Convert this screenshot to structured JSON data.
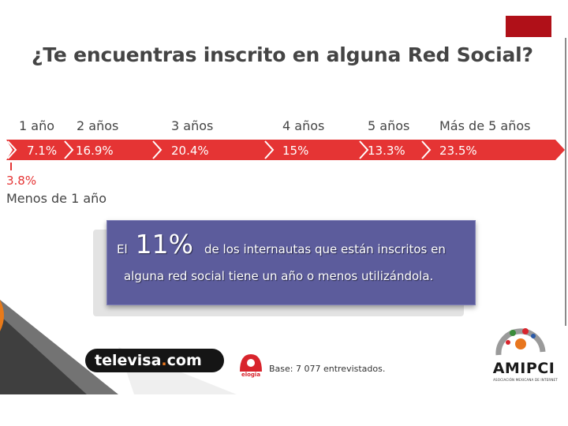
{
  "title": "¿Te encuentras inscrito en alguna Red Social?",
  "chart_data": {
    "type": "table",
    "categories": [
      "Menos de 1 año",
      "1 año",
      "2 años",
      "3 años",
      "4 años",
      "5 años",
      "Más de 5 años"
    ],
    "values": [
      3.8,
      7.1,
      16.9,
      20.4,
      15,
      13.3,
      23.5
    ],
    "value_labels": [
      "3.8%",
      "7.1%",
      "16.9%",
      "20.4%",
      "15%",
      "13.3%",
      "23.5%"
    ],
    "colors": {
      "band": "#e53434",
      "category_text": "#444444",
      "value_text": "#ffffff",
      "below_value_text": "#e53434"
    }
  },
  "callout": {
    "prefix": "El",
    "highlight": "11%",
    "line1_rest": "de los internautas que están inscritos en",
    "line2": "alguna red social tiene un año o menos utilizándola."
  },
  "footer": {
    "televisa_name": "televisa",
    "televisa_dot": ".",
    "televisa_suffix": "com",
    "elogia_label": "elogia",
    "base_note": "Base: 7 077 entrevistados.",
    "amipci_name": "AMIPCI",
    "amipci_subtitle": "ASOCIACIÓN MEXICANA DE INTERNET"
  }
}
